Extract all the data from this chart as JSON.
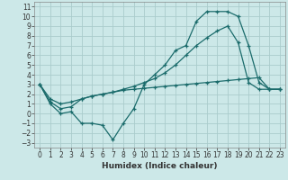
{
  "xlabel": "Humidex (Indice chaleur)",
  "bg_color": "#cce8e8",
  "grid_color": "#aacccc",
  "line_color": "#1a6b6b",
  "xlim": [
    -0.5,
    23.5
  ],
  "ylim": [
    -3.5,
    11.5
  ],
  "xticks": [
    0,
    1,
    2,
    3,
    4,
    5,
    6,
    7,
    8,
    9,
    10,
    11,
    12,
    13,
    14,
    15,
    16,
    17,
    18,
    19,
    20,
    21,
    22,
    23
  ],
  "yticks": [
    -3,
    -2,
    -1,
    0,
    1,
    2,
    3,
    4,
    5,
    6,
    7,
    8,
    9,
    10,
    11
  ],
  "line1_x": [
    0,
    1,
    2,
    3,
    4,
    5,
    6,
    7,
    8,
    9,
    10,
    11,
    12,
    13,
    14,
    15,
    16,
    17,
    18,
    19,
    20,
    21,
    22,
    23
  ],
  "line1_y": [
    3,
    1,
    0,
    0.2,
    -1,
    -1,
    -1.2,
    -2.7,
    -1,
    0.5,
    3.0,
    4.0,
    5.0,
    6.5,
    7.0,
    9.5,
    10.5,
    10.5,
    10.5,
    10.0,
    7.0,
    3.2,
    2.5,
    2.5
  ],
  "line2_x": [
    0,
    1,
    2,
    3,
    4,
    5,
    6,
    7,
    8,
    9,
    10,
    11,
    12,
    13,
    14,
    15,
    16,
    17,
    18,
    19,
    20,
    21,
    22,
    23
  ],
  "line2_y": [
    3,
    1.2,
    0.5,
    0.7,
    1.5,
    1.8,
    2.0,
    2.2,
    2.4,
    2.5,
    2.6,
    2.7,
    2.8,
    2.9,
    3.0,
    3.1,
    3.2,
    3.3,
    3.4,
    3.5,
    3.6,
    3.7,
    2.5,
    2.5
  ],
  "line3_x": [
    0,
    1,
    2,
    3,
    4,
    5,
    6,
    7,
    8,
    9,
    10,
    11,
    12,
    13,
    14,
    15,
    16,
    17,
    18,
    19,
    20,
    21,
    22,
    23
  ],
  "line3_y": [
    3,
    1.5,
    1.0,
    1.2,
    1.5,
    1.8,
    2.0,
    2.2,
    2.5,
    2.8,
    3.2,
    3.6,
    4.2,
    5.0,
    6.0,
    7.0,
    7.8,
    8.5,
    9.0,
    7.3,
    3.2,
    2.5,
    2.5,
    2.5
  ],
  "tick_fontsize": 5.5,
  "xlabel_fontsize": 6.5
}
